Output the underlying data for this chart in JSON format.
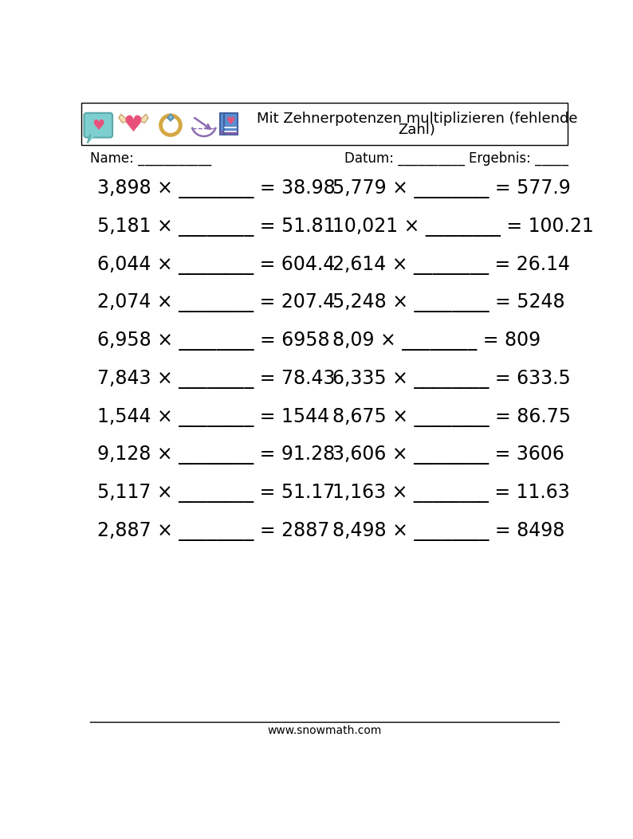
{
  "title_line1": "Mit Zehnerpotenzen multiplizieren (fehlende",
  "title_line2": "Zahl)",
  "background_color": "#ffffff",
  "left_equations": [
    "3,898 × ________ = 38.98",
    "5,181 × ________ = 51.81",
    "6,044 × ________ = 604.4",
    "2,074 × ________ = 207.4",
    "6,958 × ________ = 6958",
    "7,843 × ________ = 78.43",
    "1,544 × ________ = 1544",
    "9,128 × ________ = 91.28",
    "5,117 × ________ = 51.17",
    "2,887 × ________ = 2887"
  ],
  "right_equations": [
    "5,779 × ________ = 577.9",
    "10,021 × ________ = 100.21",
    "2,614 × ________ = 26.14",
    "5,248 × ________ = 5248",
    "8,09 × ________ = 809",
    "6,335 × ________ = 633.5",
    "8,675 × ________ = 86.75",
    "3,606 × ________ = 3606",
    "1,163 × ________ = 11.63",
    "8,498 × ________ = 8498"
  ],
  "name_label": "Name: ___________",
  "datum_label": "Datum: __________",
  "ergebnis_label": "Ergebnis: _____",
  "footer_text": "www.snowmath.com",
  "eq_font_size": 17,
  "header_font_size": 13,
  "label_font_size": 12,
  "footer_font_size": 10,
  "text_color": "#000000",
  "line_color": "#000000",
  "box_border_color": "#000000",
  "icon_speech_bubble_color": "#7dcfcf",
  "icon_heart_pink": "#e8527a",
  "icon_heart_beige": "#f5deb3",
  "icon_ring_gold": "#d4a843",
  "icon_diamond_blue": "#89c4e1",
  "icon_bow_purple": "#8b6bb1",
  "icon_book_blue": "#5b8ecf",
  "icon_book_stripe": "#7b5ea7"
}
